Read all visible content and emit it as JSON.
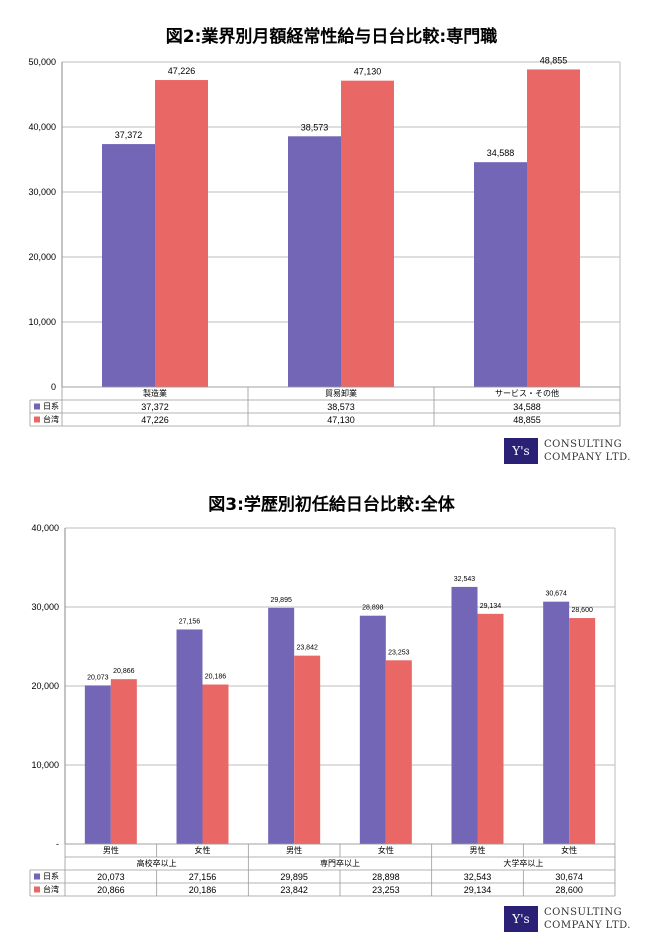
{
  "colors": {
    "japan": "#7466b6",
    "taiwan": "#e96866",
    "logo_bg": "#2a2176"
  },
  "logo": {
    "mark": "Y's",
    "line1": "CONSULTING",
    "line2": "COMPANY LTD."
  },
  "chart_data": [
    {
      "type": "bar",
      "title": "図2:業界別月額経常性給与日台比較:専門職",
      "categories": [
        "製造業",
        "貿易卸業",
        "サービス・その他"
      ],
      "series": [
        {
          "name": "日系",
          "values": [
            37372,
            38573,
            34588
          ]
        },
        {
          "name": "台湾",
          "values": [
            47226,
            47130,
            48855
          ]
        }
      ],
      "ylim": [
        0,
        50000
      ],
      "yticks": [
        "50,000",
        "40,000",
        "30,000",
        "20,000",
        "10,000",
        "0"
      ],
      "data_labels": {
        "日系": [
          "37,372",
          "38,573",
          "34,588"
        ],
        "台湾": [
          "47,226",
          "47,130",
          "48,855"
        ]
      },
      "grid": true,
      "legend": "data-table"
    },
    {
      "type": "bar",
      "title": "図3:学歴別初任給日台比較:全体",
      "categories": [
        "男性",
        "女性",
        "男性",
        "女性",
        "男性",
        "女性"
      ],
      "groups": [
        "高校卒以上",
        "専門卒以上",
        "大学卒以上"
      ],
      "series": [
        {
          "name": "日系",
          "values": [
            20073,
            27156,
            29895,
            28898,
            32543,
            30674
          ]
        },
        {
          "name": "台湾",
          "values": [
            20866,
            20186,
            23842,
            23253,
            29134,
            28600
          ]
        }
      ],
      "ylim": [
        0,
        40000
      ],
      "yticks": [
        "40,000",
        "30,000",
        "20,000",
        "10,000",
        "-"
      ],
      "data_labels": {
        "日系": [
          "20,073",
          "27,156",
          "29,895",
          "28,898",
          "32,543",
          "30,674"
        ],
        "台湾": [
          "20,866",
          "20,186",
          "23,842",
          "23,253",
          "29,134",
          "28,600"
        ]
      },
      "grid": true,
      "legend": "data-table"
    }
  ]
}
